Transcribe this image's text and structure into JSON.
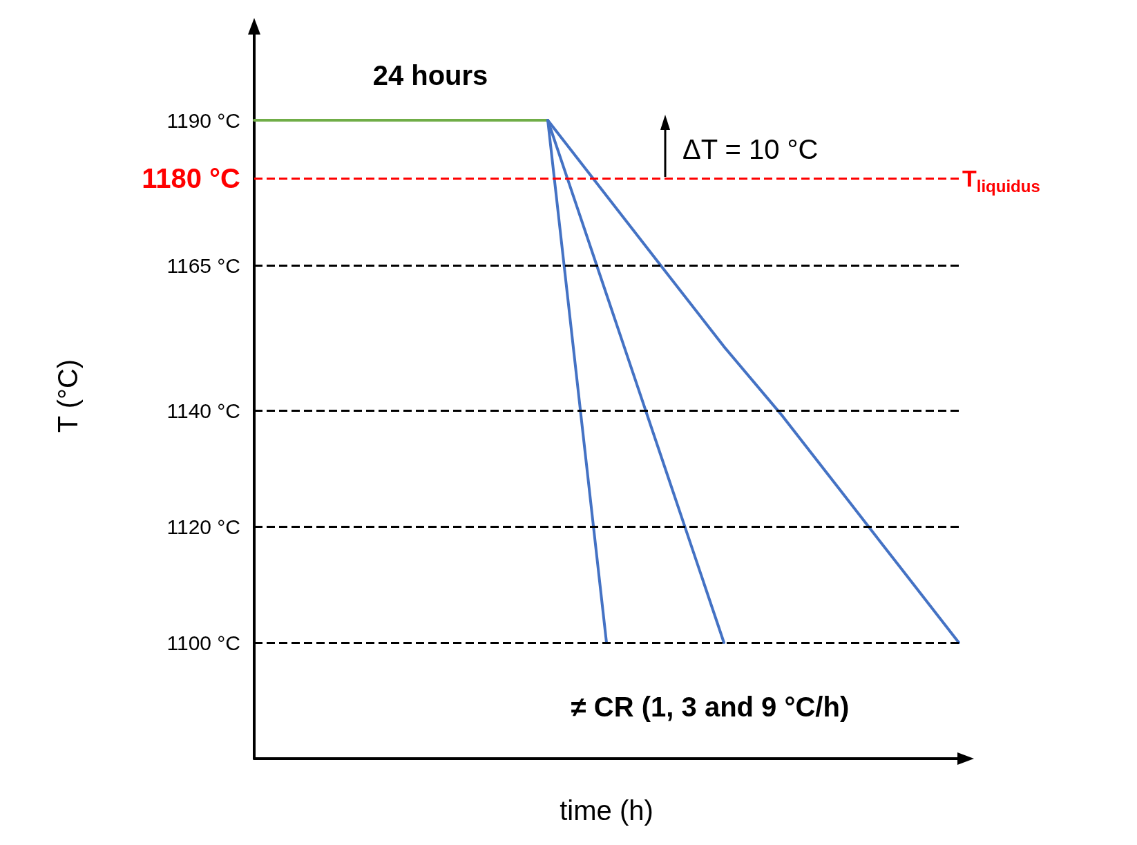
{
  "chart_data": {
    "type": "line",
    "xlabel": "time (h)",
    "ylabel": "T (°C)",
    "categories": [
      null,
      null,
      null,
      null,
      null,
      null,
      null,
      null,
      null,
      null,
      null,
      null,
      null
    ],
    "series": [
      {
        "color": "#70ad47",
        "values": [
          1190,
          1190,
          1190,
          1190,
          1190,
          1190,
          null,
          null,
          null,
          null,
          null,
          null,
          null
        ]
      },
      {
        "color": "#4472c4",
        "values": [
          null,
          null,
          null,
          null,
          null,
          1190,
          1100,
          null,
          null,
          null,
          null,
          null,
          null
        ]
      },
      {
        "color": "#4472c4",
        "values": [
          null,
          null,
          null,
          null,
          null,
          1190,
          1160,
          1130,
          1100,
          null,
          null,
          null,
          null
        ]
      },
      {
        "color": "#4472c4",
        "values": [
          null,
          null,
          null,
          null,
          null,
          1190,
          1177,
          1164,
          1151,
          1139,
          1126,
          1113,
          1100
        ]
      }
    ],
    "ylim": [
      1080,
      1205
    ],
    "yticks": [
      {
        "value": 1100,
        "label": "1100 °C"
      },
      {
        "value": 1120,
        "label": "1120 °C"
      },
      {
        "value": 1140,
        "label": "1140 °C"
      },
      {
        "value": 1165,
        "label": "1165 °C"
      },
      {
        "value": 1180,
        "label": "1180 °C"
      },
      {
        "value": 1190,
        "label": "1190 °C"
      }
    ],
    "ref_lines": [
      {
        "axis": "y",
        "value": 1180,
        "label": "T$_{liquidus}$",
        "color": "#ff0000",
        "line_style": "dashed"
      },
      {
        "axis": "y",
        "value": 1165,
        "label": null,
        "color": "#000000",
        "line_style": "dashed"
      },
      {
        "axis": "y",
        "value": 1140,
        "label": null,
        "color": "#000000",
        "line_style": "dashed"
      },
      {
        "axis": "y",
        "value": 1120,
        "label": null,
        "color": "#000000",
        "line_style": "dashed"
      },
      {
        "axis": "y",
        "value": 1100,
        "label": null,
        "color": "#000000",
        "line_style": "dashed"
      }
    ],
    "annotations": [
      {
        "text": "24 hours",
        "y": 1190
      },
      "ΔT = 10 °C",
      "≠ CR (1, 3 and 9 °C/h)"
    ],
    "tick_labels": "y",
    "marker": "none"
  }
}
